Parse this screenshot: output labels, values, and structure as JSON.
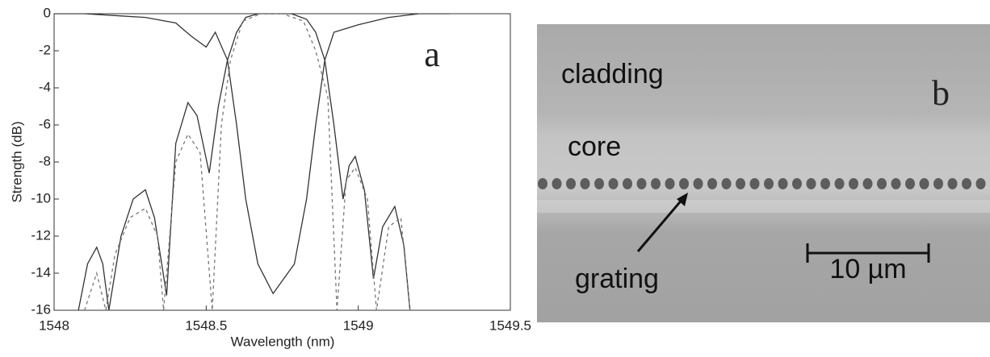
{
  "chart_data": {
    "type": "line",
    "panel_label": "a",
    "x_label": "Wavelength (nm)",
    "y_label": "Strength (dB)",
    "xlim": [
      1548,
      1549.5
    ],
    "xticks": [
      1548,
      1548.5,
      1549,
      1549.5
    ],
    "ylim": [
      -16,
      0
    ],
    "yticks": [
      0,
      -2,
      -4,
      -6,
      -8,
      -10,
      -12,
      -14,
      -16
    ],
    "series": [
      {
        "color": "#333333",
        "style": "solid",
        "x": [
          1548.08,
          1548.11,
          1548.14,
          1548.16,
          1548.18,
          1548.22,
          1548.26,
          1548.3,
          1548.33,
          1548.37,
          1548.4,
          1548.44,
          1548.47,
          1548.51,
          1548.54,
          1548.57,
          1548.6,
          1548.63,
          1548.67,
          1548.72,
          1548.78,
          1548.83,
          1548.86,
          1548.89,
          1548.92,
          1548.95,
          1548.97,
          1548.99,
          1549.02,
          1549.05,
          1549.08,
          1549.12,
          1549.15,
          1549.17
        ],
        "values": [
          -16,
          -13.5,
          -12.6,
          -13.5,
          -16,
          -12,
          -10,
          -9.5,
          -11,
          -15.2,
          -7,
          -4.8,
          -5.5,
          -8.6,
          -5,
          -2.5,
          -1,
          -0.2,
          0,
          0,
          0,
          -0.3,
          -1,
          -2.5,
          -6,
          -10,
          -8.2,
          -7.7,
          -9.5,
          -14.3,
          -11.5,
          -10.4,
          -12.5,
          -16
        ]
      },
      {
        "color": "#333333",
        "style": "solid",
        "x": [
          1548,
          1548.1,
          1548.2,
          1548.3,
          1548.4,
          1548.45,
          1548.5,
          1548.53,
          1548.57,
          1548.6,
          1548.63,
          1548.67,
          1548.72,
          1548.79,
          1548.83,
          1548.86,
          1548.89,
          1548.92,
          1549,
          1549.1,
          1549.2,
          1549.3
        ],
        "values": [
          0,
          0,
          -0.1,
          -0.2,
          -0.5,
          -1.2,
          -1.8,
          -1,
          -2.5,
          -6,
          -10,
          -13.5,
          -15.1,
          -13.5,
          -10,
          -6,
          -2.5,
          -1,
          -0.6,
          -0.2,
          0,
          0
        ]
      },
      {
        "color": "#777777",
        "style": "dashed",
        "x": [
          1548.1,
          1548.14,
          1548.17,
          1548.2,
          1548.25,
          1548.3,
          1548.34,
          1548.36,
          1548.4,
          1548.44,
          1548.48,
          1548.52,
          1548.55,
          1548.58,
          1548.62,
          1548.68,
          1548.75,
          1548.82,
          1548.86,
          1548.9,
          1548.93,
          1548.96,
          1548.99,
          1549.03,
          1549.06,
          1549.1,
          1549.14,
          1549.17
        ],
        "values": [
          -16,
          -14,
          -16,
          -13,
          -11,
          -10.5,
          -12,
          -16,
          -8,
          -6.5,
          -7.5,
          -16,
          -6,
          -2.5,
          -0.4,
          0,
          0,
          -0.4,
          -2,
          -4.5,
          -16,
          -9,
          -8.3,
          -10,
          -16,
          -11.5,
          -11,
          -16
        ]
      }
    ]
  },
  "image_b": {
    "panel_label": "b",
    "labels": [
      "cladding",
      "core",
      "grating"
    ],
    "scale_bar": "10 µm"
  }
}
